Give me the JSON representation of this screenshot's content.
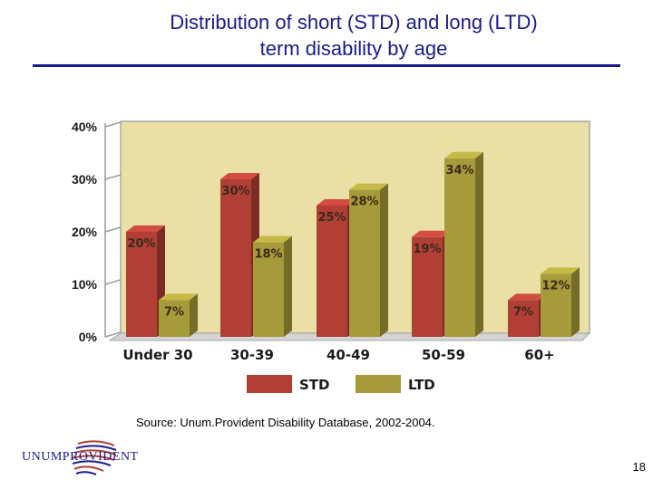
{
  "title_line1": "Distribution of short (STD) and long (LTD)",
  "title_line2": "term disability by age",
  "source": "Source: Unum.Provident Disability Database, 2002-2004.",
  "page_number": "18",
  "logo": {
    "text": "UNUMPROVIDENT"
  },
  "colors": {
    "std": "#b13f36",
    "ltd": "#a59b3a",
    "plot_bg": "#eadfa5",
    "title": "#1a1a8c"
  },
  "chart_data": {
    "type": "bar",
    "title": "",
    "xlabel": "",
    "ylabel": "",
    "ylim": [
      0,
      40
    ],
    "yticks": [
      "0%",
      "10%",
      "20%",
      "30%",
      "40%"
    ],
    "categories": [
      "Under 30",
      "30-39",
      "40-49",
      "50-59",
      "60+"
    ],
    "series": [
      {
        "name": "STD",
        "values": [
          20,
          30,
          25,
          19,
          7
        ],
        "labels": [
          "20%",
          "30%",
          "25%",
          "19%",
          "7%"
        ]
      },
      {
        "name": "LTD",
        "values": [
          7,
          18,
          28,
          34,
          12
        ],
        "labels": [
          "7%",
          "18%",
          "28%",
          "34%",
          "12%"
        ]
      }
    ],
    "legend": "bottom"
  }
}
